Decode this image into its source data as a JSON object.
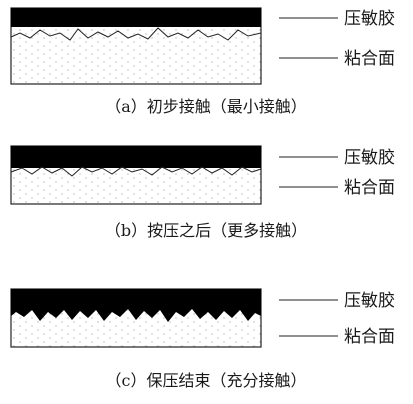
{
  "panels": [
    {
      "top_label": "压敏胶",
      "bottom_label": "粘合面",
      "caption": "（a）初步接触（最小接触）"
    },
    {
      "top_label": "压敏胶",
      "bottom_label": "粘合面",
      "caption": "（b）按压之后（更多接触）"
    },
    {
      "top_label": "压敏胶",
      "bottom_label": "粘合面",
      "caption": "（c）保压结束（充分接触）"
    }
  ],
  "colors": {
    "adhesive": "#000000",
    "surface_fill": "#ffffff",
    "stipple": "#9a9a9a",
    "line": "#222222"
  }
}
